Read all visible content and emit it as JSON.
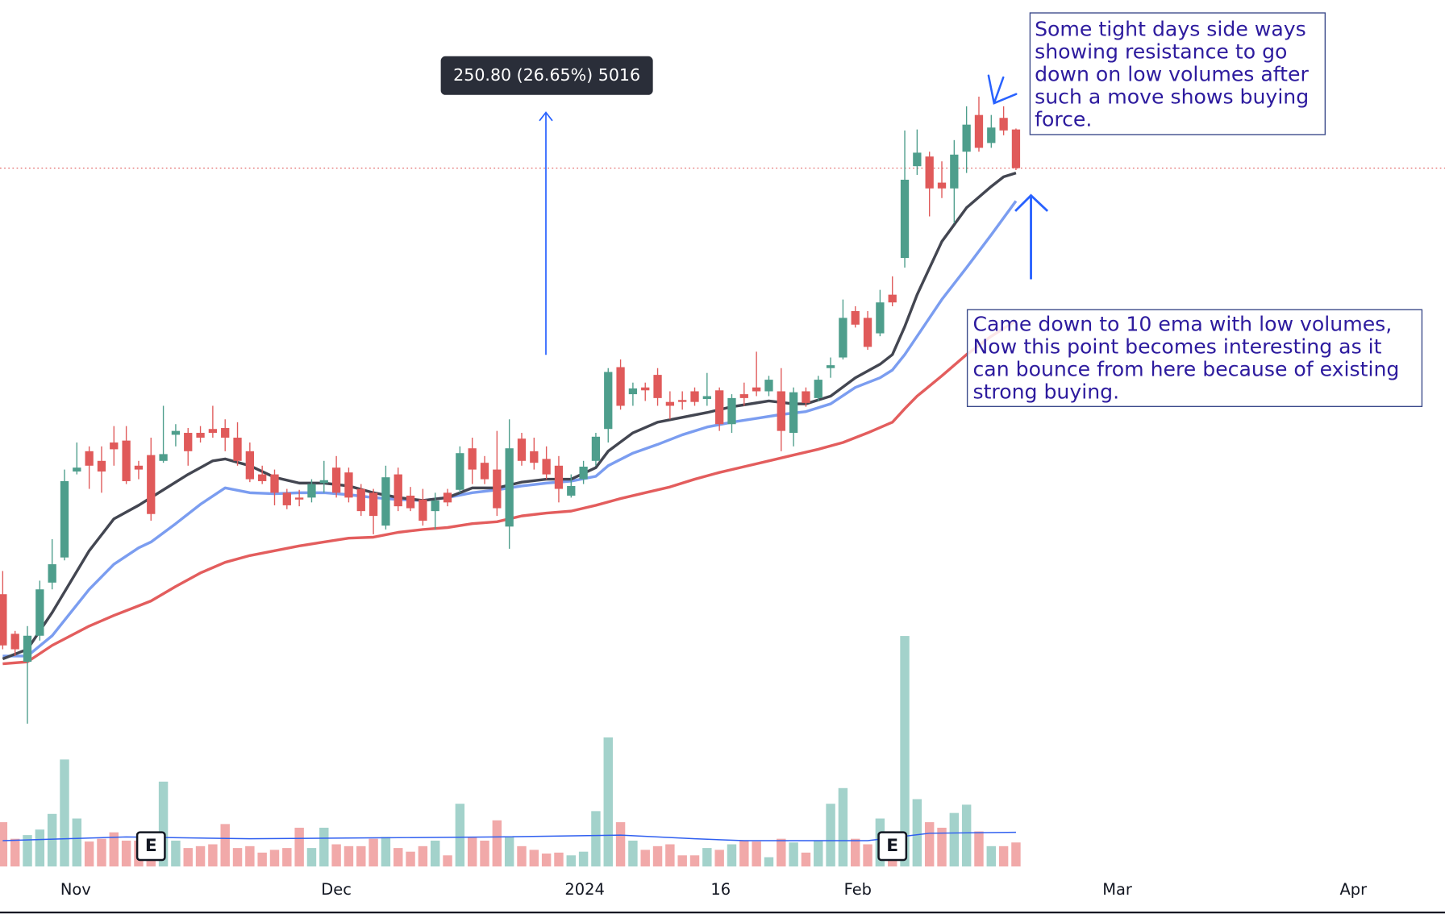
{
  "chart_data": {
    "type": "candlestick",
    "up_color": "#4e9e8c",
    "down_color": "#e05a5a",
    "volume_up_color": "#a3d2cb",
    "volume_down_color": "#f1a9a9",
    "xlim": [
      -0.22,
      116.72
    ],
    "ylim": [
      362,
      1308
    ],
    "volume_lim": [
      0,
      250
    ],
    "xticks": [
      {
        "value": 5.9,
        "label": "Nov"
      },
      {
        "value": 27.0,
        "label": "Dec"
      },
      {
        "value": 47.1,
        "label": "2024"
      },
      {
        "value": 58.1,
        "label": "16"
      },
      {
        "value": 69.2,
        "label": "Feb"
      },
      {
        "value": 90.2,
        "label": "Mar"
      },
      {
        "value": 109.3,
        "label": "Apr"
      }
    ],
    "open": [
      693,
      652,
      623,
      650,
      705,
      731,
      820,
      841,
      831,
      850,
      852,
      826,
      837,
      831,
      858,
      860,
      860,
      864,
      865,
      855,
      841,
      817,
      817,
      798,
      793,
      793,
      808,
      824,
      819,
      802,
      798,
      764,
      817,
      795,
      791,
      779,
      798,
      801,
      844,
      829,
      822,
      763,
      854,
      841,
      833,
      826,
      795,
      812,
      831,
      864,
      928,
      900,
      907,
      920,
      892,
      894,
      903,
      895,
      904,
      869,
      900,
      907,
      903,
      903,
      860,
      903,
      896,
      927,
      938,
      986,
      979,
      963,
      1003,
      1041,
      1136,
      1146,
      1119,
      1113,
      1151,
      1189,
      1160,
      1186,
      1174
    ],
    "high": [
      717,
      655,
      660,
      707,
      750,
      822,
      850,
      846,
      846,
      867,
      867,
      831,
      855,
      888,
      869,
      865,
      867,
      888,
      874,
      871,
      850,
      826,
      822,
      802,
      801,
      812,
      831,
      836,
      824,
      807,
      802,
      826,
      824,
      804,
      802,
      798,
      802,
      846,
      855,
      836,
      862,
      874,
      860,
      855,
      846,
      836,
      817,
      831,
      860,
      927,
      936,
      912,
      912,
      927,
      903,
      903,
      907,
      922,
      907,
      900,
      912,
      944,
      919,
      927,
      907,
      907,
      919,
      938,
      998,
      991,
      986,
      1008,
      1022,
      1173,
      1174,
      1151,
      1141,
      1163,
      1198,
      1208,
      1189,
      1198,
      1175
    ],
    "low": [
      636,
      629,
      559,
      645,
      698,
      728,
      817,
      802,
      798,
      826,
      807,
      812,
      769,
      829,
      846,
      826,
      850,
      855,
      841,
      826,
      809,
      807,
      785,
      781,
      784,
      788,
      798,
      793,
      788,
      774,
      755,
      760,
      779,
      779,
      764,
      760,
      784,
      798,
      807,
      807,
      774,
      740,
      826,
      822,
      812,
      788,
      793,
      807,
      826,
      850,
      884,
      888,
      893,
      888,
      874,
      884,
      888,
      888,
      862,
      860,
      888,
      898,
      898,
      841,
      846,
      887,
      893,
      917,
      936,
      969,
      946,
      960,
      991,
      1031,
      1127,
      1084,
      1103,
      1077,
      1129,
      1151,
      1155,
      1168,
      1132
    ],
    "close": [
      640,
      636,
      650,
      698,
      724,
      810,
      824,
      826,
      820,
      843,
      810,
      822,
      776,
      838,
      862,
      841,
      855,
      860,
      855,
      831,
      812,
      810,
      798,
      785,
      791,
      807,
      811,
      798,
      793,
      779,
      774,
      814,
      784,
      782,
      769,
      790,
      788,
      839,
      822,
      812,
      782,
      844,
      831,
      829,
      817,
      802,
      805,
      825,
      856,
      923,
      888,
      906,
      904,
      896,
      888,
      892,
      892,
      898,
      869,
      896,
      896,
      903,
      915,
      862,
      902,
      891,
      915,
      930,
      979,
      972,
      949,
      995,
      995,
      1122,
      1150,
      1113,
      1113,
      1148,
      1179,
      1155,
      1176,
      1173,
      1134
    ],
    "volume": [
      48,
      30,
      34,
      40,
      57,
      116,
      52,
      27,
      30,
      37,
      28,
      28,
      35,
      92,
      28,
      20,
      22,
      24,
      46,
      20,
      22,
      15,
      18,
      20,
      42,
      20,
      42,
      24,
      22,
      22,
      30,
      32,
      20,
      16,
      22,
      28,
      12,
      68,
      32,
      28,
      50,
      32,
      22,
      18,
      14,
      15,
      12,
      16,
      60,
      140,
      48,
      28,
      18,
      22,
      24,
      12,
      12,
      20,
      18,
      24,
      28,
      27,
      10,
      30,
      26,
      15,
      28,
      68,
      85,
      30,
      24,
      52,
      30,
      250,
      73,
      48,
      42,
      58,
      67,
      38,
      22,
      22,
      26
    ],
    "volume_ma": {
      "color": "#2f5ff0",
      "x": [
        0,
        10,
        20,
        30,
        40,
        50,
        56,
        60,
        70,
        75,
        82
      ],
      "values": [
        28,
        32,
        30,
        31,
        32,
        34,
        30,
        28,
        28,
        36,
        37
      ]
    },
    "ema": [
      {
        "color": "#e35d5d",
        "x": [
          0,
          2,
          4,
          7,
          9,
          11,
          12,
          14,
          16,
          18,
          20,
          22,
          24,
          26,
          28,
          30,
          32,
          34,
          36,
          38,
          40,
          42,
          44,
          46,
          48,
          50,
          52,
          54,
          56,
          58,
          60,
          62,
          64,
          66,
          68,
          70,
          72,
          73,
          74,
          76,
          78,
          80,
          82
        ],
        "values": [
          621,
          623,
          640,
          660,
          671,
          681,
          686,
          701,
          715,
          726,
          733,
          738,
          743,
          747,
          751,
          752,
          757,
          760,
          762,
          766,
          768,
          774,
          777,
          779,
          785,
          792,
          798,
          804,
          812,
          819,
          825,
          831,
          837,
          843,
          850,
          860,
          871,
          885,
          898,
          919,
          941,
          960,
          976
        ]
      },
      {
        "color": "#7b9df0",
        "x": [
          0,
          2,
          4,
          7,
          9,
          11,
          12,
          14,
          16,
          18,
          20,
          22,
          24,
          26,
          28,
          30,
          32,
          34,
          36,
          38,
          40,
          42,
          44,
          46,
          48,
          49,
          51,
          53,
          55,
          57,
          59,
          61,
          63,
          65,
          67,
          69,
          71,
          72,
          73,
          74,
          76,
          78,
          80,
          82
        ],
        "values": [
          629,
          629,
          650,
          698,
          724,
          741,
          747,
          766,
          786,
          803,
          798,
          797,
          798,
          798,
          796,
          793,
          791,
          790,
          793,
          798,
          801,
          805,
          808,
          810,
          815,
          826,
          839,
          848,
          858,
          866,
          871,
          875,
          879,
          882,
          890,
          907,
          917,
          925,
          941,
          960,
          998,
          1031,
          1065,
          1100
        ]
      },
      {
        "color": "#434651",
        "x": [
          0,
          2,
          4,
          7,
          9,
          11,
          13,
          15,
          17,
          18,
          20,
          22,
          24,
          26,
          28,
          30,
          32,
          34,
          36,
          38,
          40,
          42,
          44,
          46,
          48,
          49,
          51,
          53,
          55,
          57,
          59,
          61,
          62,
          64,
          65,
          67,
          69,
          71,
          72,
          73,
          74,
          76,
          78,
          80,
          81,
          82
        ],
        "values": [
          626,
          636,
          674,
          738,
          771,
          785,
          801,
          817,
          831,
          833,
          826,
          814,
          808,
          808,
          805,
          798,
          793,
          790,
          793,
          803,
          803,
          809,
          812,
          812,
          824,
          841,
          860,
          871,
          876,
          881,
          887,
          891,
          893,
          890,
          890,
          898,
          917,
          931,
          941,
          970,
          1003,
          1058,
          1093,
          1115,
          1125,
          1129
        ]
      }
    ],
    "earnings": [
      {
        "x": 12,
        "label": "E"
      },
      {
        "x": 72,
        "label": "E"
      }
    ],
    "measure_label": "250.80 (26.65%) 5016",
    "annotations": [
      {
        "lines": [
          "Some tight days side ways",
          "showing resistance to go",
          "down on low volumes after",
          "such a move shows buying",
          "force."
        ]
      },
      {
        "lines": [
          "Came down to 10 ema with low volumes,",
          "Now this point becomes interesting as it",
          "can bounce from here because of existing",
          "strong buying."
        ]
      }
    ]
  }
}
